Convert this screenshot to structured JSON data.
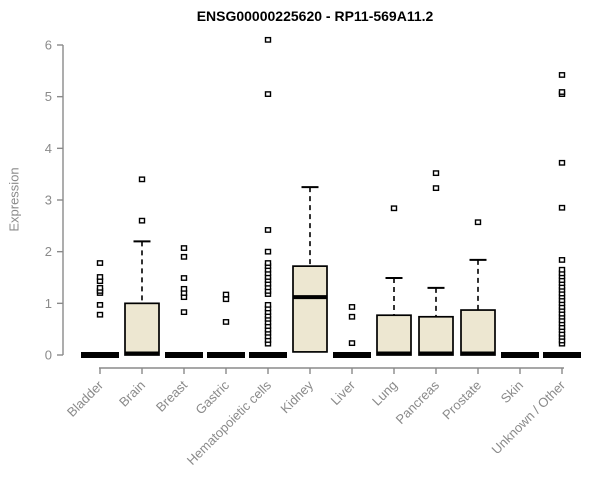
{
  "chart_data": {
    "type": "boxplot",
    "title": "ENSG00000225620 - RP11-569A11.2",
    "ylabel": "Expression",
    "xlabel": "",
    "ylim": [
      0,
      6
    ],
    "yticks": [
      0,
      1,
      2,
      3,
      4,
      5,
      6
    ],
    "grid": false,
    "legend": "none",
    "colors": {
      "box_fill": "#ede7d1",
      "box_stroke": "#000000",
      "axis": "#8a8a8a",
      "tick_label": "#8a8a8a",
      "title": "#000000",
      "outlier_fill": "#ffffff"
    },
    "categories": [
      "Bladder",
      "Brain",
      "Breast",
      "Gastric",
      "Hematopoietic cells",
      "Kidney",
      "Liver",
      "Lung",
      "Pancreas",
      "Prostate",
      "Skin",
      "Unknown / Other"
    ],
    "series": [
      {
        "name": "Bladder",
        "q1": 0,
        "median": 0,
        "q3": 0,
        "whisker_low": 0,
        "whisker_high": 0,
        "outliers": [
          0.78,
          0.97,
          1.2,
          1.24,
          1.3,
          1.43,
          1.51,
          1.78
        ]
      },
      {
        "name": "Brain",
        "q1": 0,
        "median": 0.03,
        "q3": 1.0,
        "whisker_low": 0,
        "whisker_high": 2.2,
        "outliers": [
          2.6,
          3.4
        ]
      },
      {
        "name": "Breast",
        "q1": 0,
        "median": 0,
        "q3": 0,
        "whisker_low": 0,
        "whisker_high": 0,
        "outliers": [
          0.83,
          1.12,
          1.2,
          1.28,
          1.49,
          1.9,
          2.07
        ]
      },
      {
        "name": "Gastric",
        "q1": 0,
        "median": 0,
        "q3": 0,
        "whisker_low": 0,
        "whisker_high": 0,
        "outliers": [
          0.64,
          1.08,
          1.17
        ]
      },
      {
        "name": "Hematopoietic cells",
        "q1": 0,
        "median": 0,
        "q3": 0,
        "whisker_low": 0,
        "whisker_high": 0,
        "outliers": [
          0.22,
          0.29,
          0.36,
          0.43,
          0.49,
          0.56,
          0.63,
          0.7,
          0.76,
          0.83,
          0.9,
          0.97,
          1.18,
          1.24,
          1.31,
          1.38,
          1.45,
          1.51,
          1.58,
          1.65,
          1.72,
          1.78,
          2.0,
          2.42,
          5.05,
          6.1
        ]
      },
      {
        "name": "Kidney",
        "q1": 0.06,
        "median": 1.12,
        "q3": 1.72,
        "whisker_low": 0.06,
        "whisker_high": 3.25,
        "outliers": []
      },
      {
        "name": "Liver",
        "q1": 0,
        "median": 0,
        "q3": 0,
        "whisker_low": 0,
        "whisker_high": 0,
        "outliers": [
          0.23,
          0.74,
          0.93
        ]
      },
      {
        "name": "Lung",
        "q1": 0,
        "median": 0.03,
        "q3": 0.77,
        "whisker_low": 0,
        "whisker_high": 1.49,
        "outliers": [
          2.84
        ]
      },
      {
        "name": "Pancreas",
        "q1": 0,
        "median": 0.03,
        "q3": 0.74,
        "whisker_low": 0,
        "whisker_high": 1.3,
        "outliers": [
          3.23,
          3.52
        ]
      },
      {
        "name": "Prostate",
        "q1": 0,
        "median": 0.03,
        "q3": 0.87,
        "whisker_low": 0,
        "whisker_high": 1.84,
        "outliers": [
          2.57
        ]
      },
      {
        "name": "Skin",
        "q1": 0,
        "median": 0,
        "q3": 0,
        "whisker_low": 0,
        "whisker_high": 0,
        "outliers": []
      },
      {
        "name": "Unknown / Other",
        "q1": 0,
        "median": 0,
        "q3": 0,
        "whisker_low": 0,
        "whisker_high": 0,
        "outliers": [
          0.22,
          0.28,
          0.35,
          0.41,
          0.48,
          0.54,
          0.61,
          0.67,
          0.74,
          0.8,
          0.87,
          0.93,
          1.0,
          1.06,
          1.13,
          1.19,
          1.26,
          1.32,
          1.39,
          1.45,
          1.52,
          1.58,
          1.65,
          1.84,
          2.85,
          3.72,
          5.05,
          5.09,
          5.42
        ]
      }
    ]
  }
}
